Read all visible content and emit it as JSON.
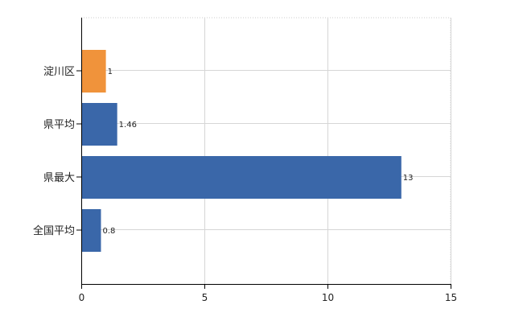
{
  "chart_data": {
    "type": "bar",
    "orientation": "horizontal",
    "categories": [
      "淀川区",
      "県平均",
      "県最大",
      "全国平均"
    ],
    "values": [
      1,
      1.46,
      13,
      0.8
    ],
    "value_labels": [
      "1",
      "1.46",
      "13",
      "0.8"
    ],
    "colors": [
      "#f0933b",
      "#3a67a9",
      "#3a67a9",
      "#3a67a9"
    ],
    "xlim": [
      0,
      15
    ],
    "x_ticks": [
      "0",
      "5",
      "10",
      "15"
    ],
    "grid": true,
    "legend": "none",
    "title": "",
    "xlabel": "",
    "ylabel": ""
  }
}
